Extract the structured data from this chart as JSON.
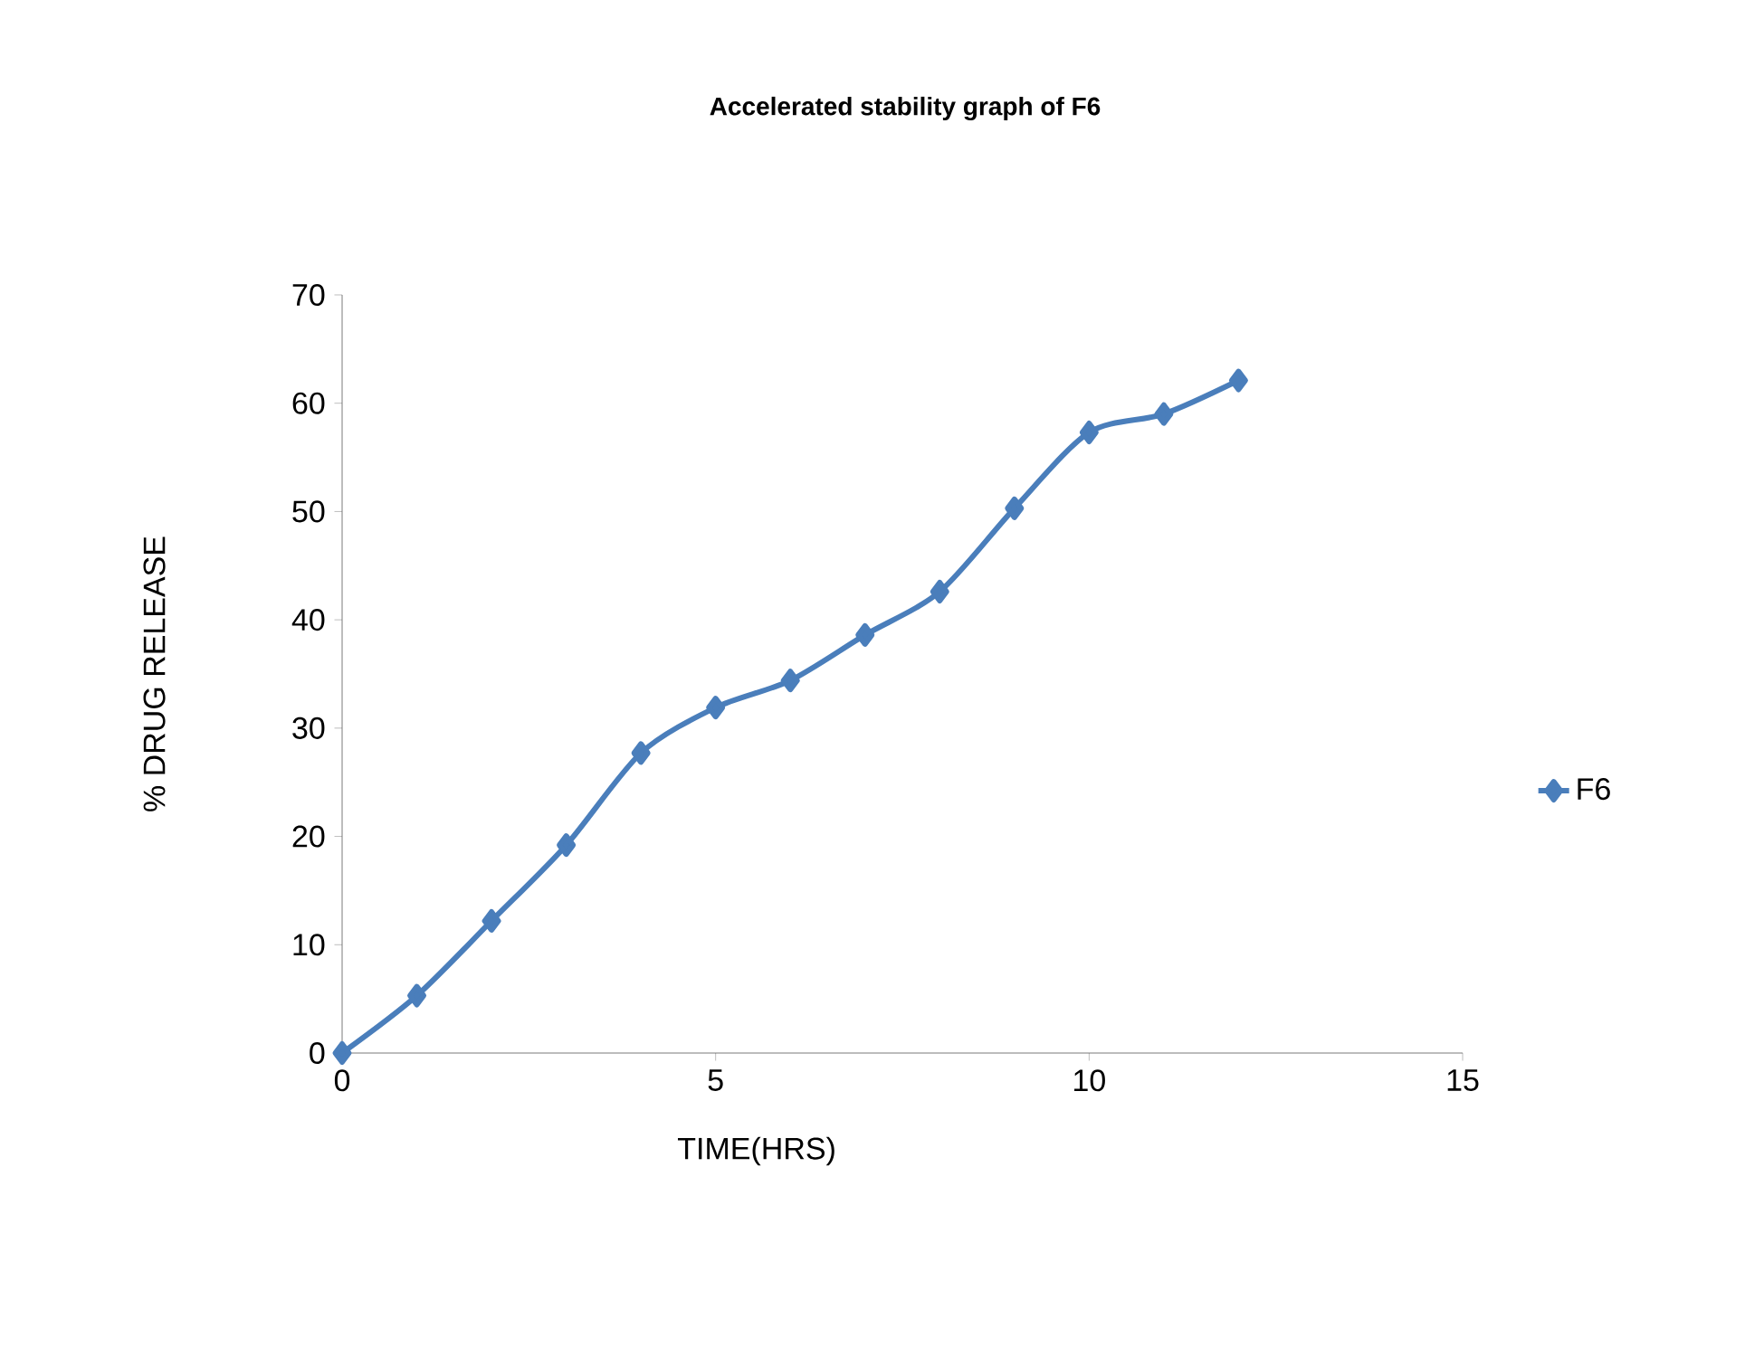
{
  "chart_data": {
    "type": "line",
    "title": "Accelerated stability graph of F6",
    "xlabel": "TIME(HRS)",
    "ylabel": "% DRUG RELEASE",
    "x": [
      0,
      1,
      2,
      3,
      4,
      5,
      6,
      7,
      8,
      9,
      10,
      11,
      12
    ],
    "series": [
      {
        "name": "F6",
        "color": "#4a7ebb",
        "values": [
          0,
          5.3,
          12.2,
          19.2,
          27.7,
          31.9,
          34.4,
          38.6,
          42.6,
          50.3,
          57.3,
          59.0,
          62.1
        ]
      }
    ],
    "xlim": [
      0,
      15
    ],
    "xticks": [
      0,
      5,
      10,
      15
    ],
    "ylim": [
      0,
      70
    ],
    "yticks": [
      0,
      10,
      20,
      30,
      40,
      50,
      60,
      70
    ],
    "grid": false,
    "legend": "right",
    "marker": "diamond",
    "line_style": "solid"
  }
}
